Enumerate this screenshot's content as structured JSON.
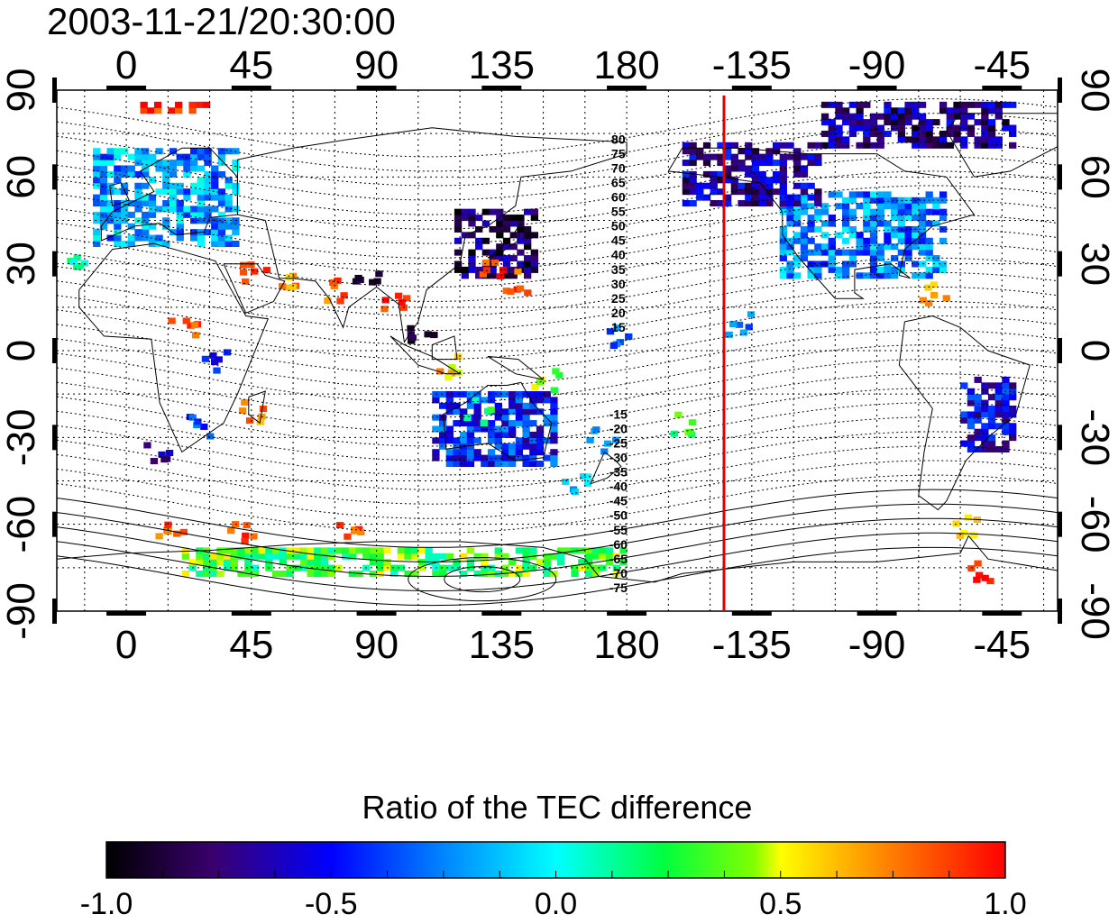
{
  "title": "2003-11-21/20:30:00",
  "map": {
    "lon_range": [
      -25,
      335
    ],
    "lat_range": [
      -90,
      90
    ],
    "lon_ticks": [
      0,
      45,
      90,
      135,
      180,
      225,
      270,
      315
    ],
    "lon_tick_labels": [
      "0",
      "45",
      "90",
      "135",
      "180",
      "-135",
      "-90",
      "-45"
    ],
    "lat_ticks": [
      90,
      60,
      30,
      0,
      -30,
      -60,
      -90
    ],
    "lat_tick_labels": [
      "90",
      "60",
      "30",
      "0",
      "-30",
      "-60",
      "-90"
    ],
    "grid": true,
    "marker_line": {
      "lon": 215,
      "color": "#e00000"
    },
    "magnetic_contour_labels": [
      "80",
      "75",
      "70",
      "65",
      "60",
      "55",
      "50",
      "45",
      "40",
      "35",
      "30",
      "25",
      "20",
      "15",
      "-15",
      "-20",
      "-25",
      "-30",
      "-35",
      "-40",
      "-45",
      "-50",
      "-55",
      "-60",
      "-65",
      "-70",
      "-75"
    ]
  },
  "colorbar": {
    "title": "Ratio of the TEC difference",
    "range": [
      -1.0,
      1.0
    ],
    "tick_values": [
      -1.0,
      -0.5,
      0.0,
      0.5,
      1.0
    ],
    "tick_labels": [
      "-1.0",
      "-0.5",
      "0.0",
      "0.5",
      "1.0"
    ]
  },
  "data_regions": [
    {
      "region": "Europe",
      "lon": [
        -12,
        40
      ],
      "lat": [
        36,
        70
      ],
      "value": -0.2
    },
    {
      "region": "North America",
      "lon": [
        235,
        295
      ],
      "lat": [
        25,
        55
      ],
      "value": -0.25
    },
    {
      "region": "Alaska / Canada",
      "lon": [
        200,
        250
      ],
      "lat": [
        50,
        72
      ],
      "value": -0.65
    },
    {
      "region": "Japan / East China",
      "lon": [
        118,
        148
      ],
      "lat": [
        25,
        48
      ],
      "value": -0.8
    },
    {
      "region": "Arctic Canada",
      "lon": [
        250,
        320
      ],
      "lat": [
        70,
        85
      ],
      "value": -0.7
    },
    {
      "region": "South America east",
      "lon": [
        300,
        320
      ],
      "lat": [
        -35,
        -10
      ],
      "value": -0.55
    },
    {
      "region": "Australia",
      "lon": [
        110,
        155
      ],
      "lat": [
        -40,
        -15
      ],
      "value": -0.45
    },
    {
      "region": "Antarctic coast",
      "lon": [
        20,
        180
      ],
      "lat": [
        -78,
        -68
      ],
      "value": 0.3
    },
    {
      "region": "Arctic high",
      "lon": [
        5,
        30
      ],
      "lat": [
        82,
        86
      ],
      "value": 1.0
    }
  ]
}
